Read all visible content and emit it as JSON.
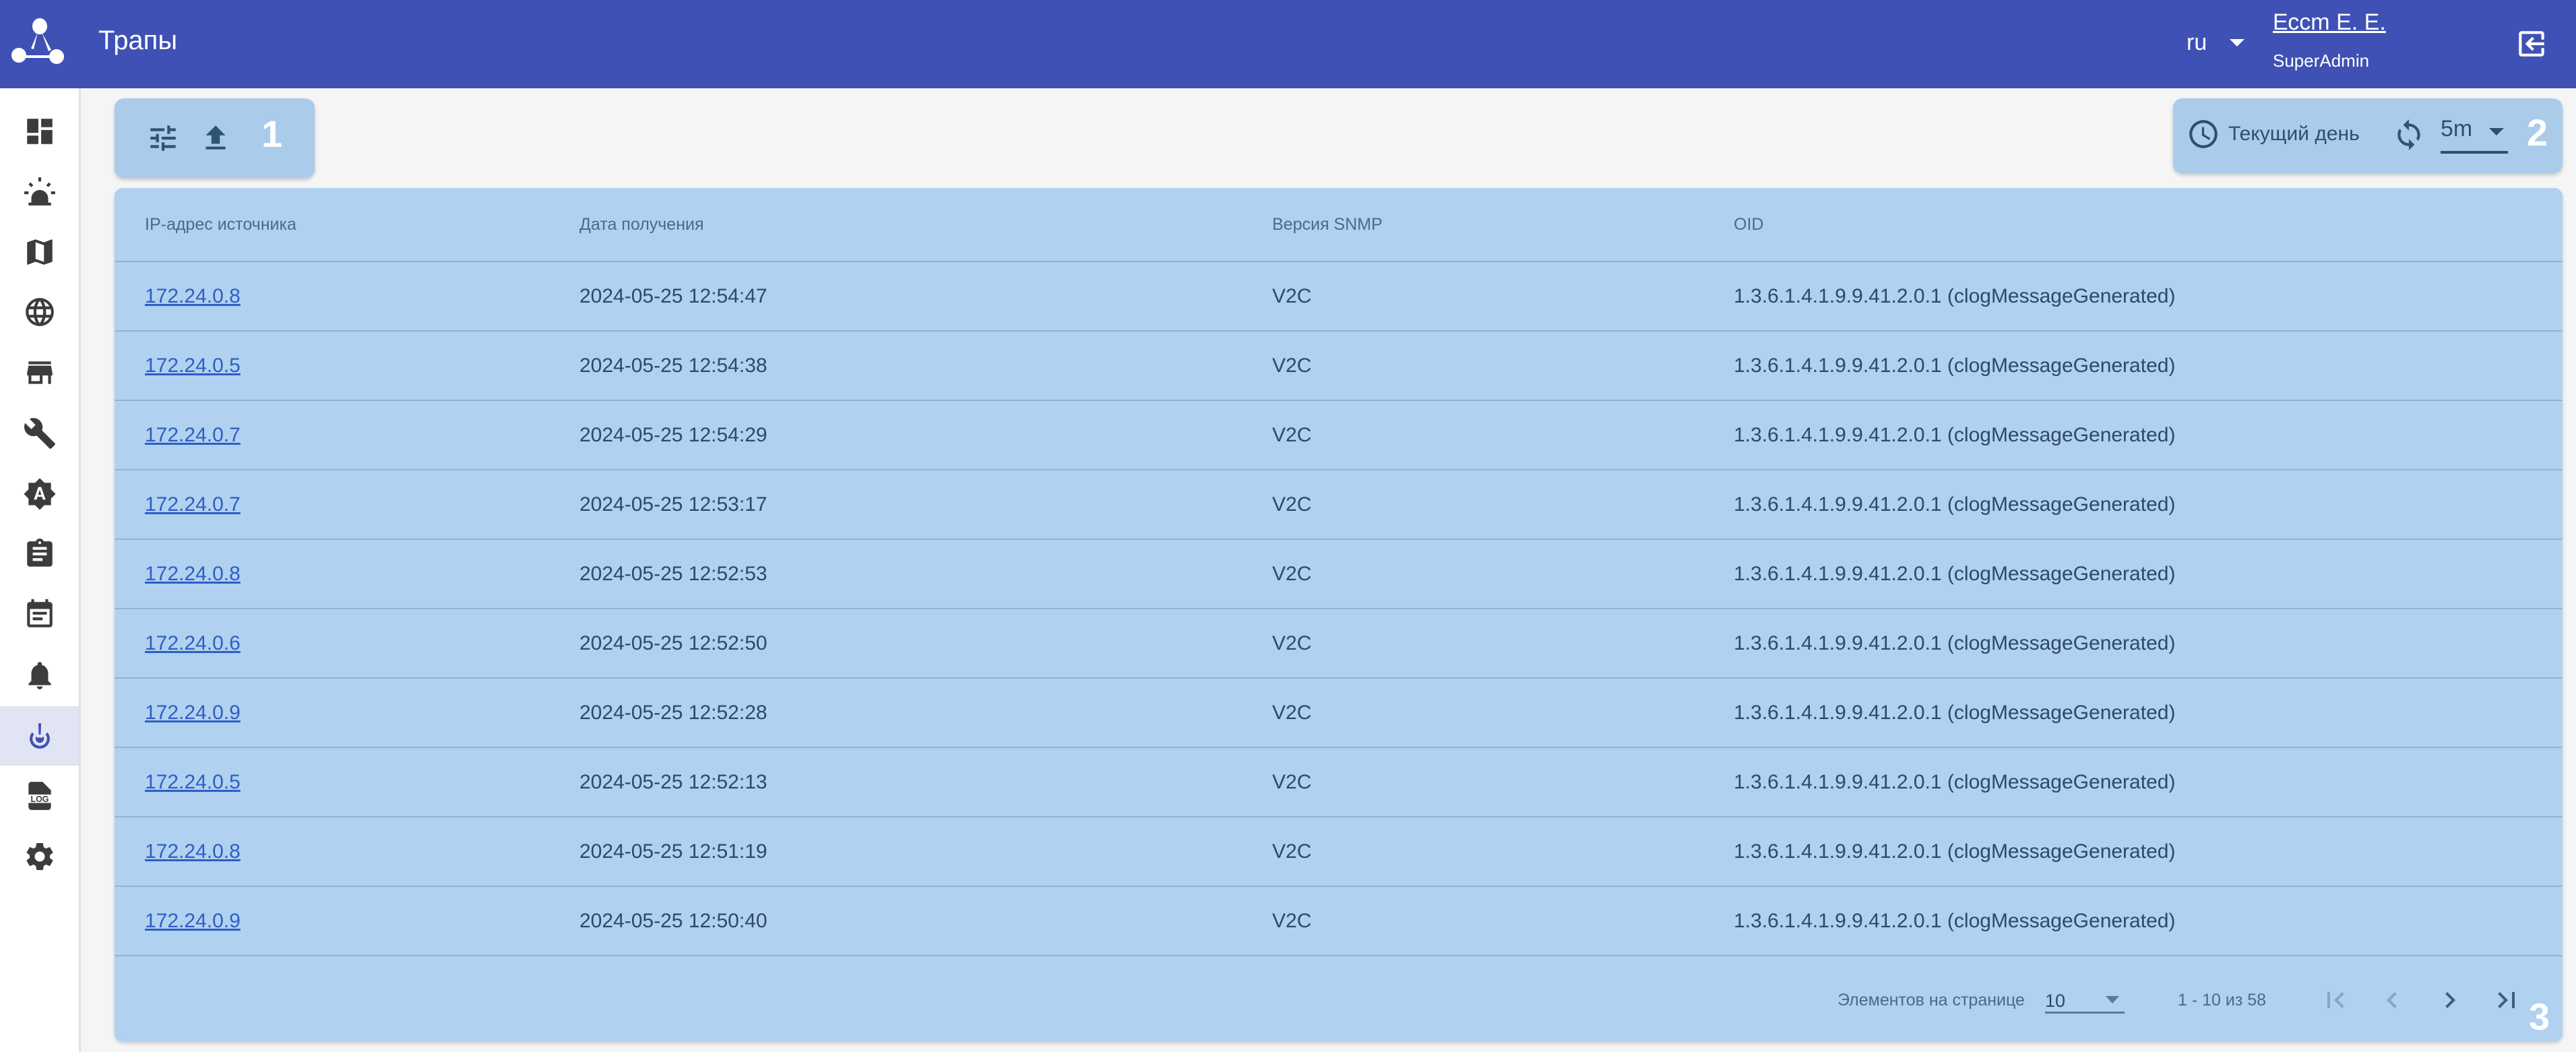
{
  "header": {
    "title": "Трапы",
    "language": "ru",
    "user_name": "Ессm Е. Е.",
    "user_role": "SuperAdmin",
    "accent": "#3f51b5"
  },
  "sidebar": {
    "items": [
      {
        "icon": "dashboard-icon"
      },
      {
        "icon": "alarm-light-icon"
      },
      {
        "icon": "map-icon"
      },
      {
        "icon": "globe-icon"
      },
      {
        "icon": "store-icon"
      },
      {
        "icon": "wrench-icon"
      },
      {
        "icon": "brightness-auto-icon"
      },
      {
        "icon": "clipboard-icon"
      },
      {
        "icon": "calendar-icon"
      },
      {
        "icon": "bell-icon"
      },
      {
        "icon": "trap-icon",
        "active": true
      },
      {
        "icon": "log-file-icon"
      },
      {
        "icon": "settings-icon"
      }
    ]
  },
  "toolbar_left": {
    "badge": "1",
    "buttons": [
      "filter-icon",
      "upload-icon"
    ]
  },
  "toolbar_right": {
    "period": "Текущий день",
    "refresh_interval": "5m",
    "badge": "2"
  },
  "table": {
    "columns": [
      "IP-адрес источника",
      "Дата получения",
      "Версия SNMP",
      "OID"
    ],
    "rows": [
      [
        "172.24.0.8",
        "2024-05-25 12:54:47",
        "V2C",
        "1.3.6.1.4.1.9.9.41.2.0.1 (clogMessageGenerated)"
      ],
      [
        "172.24.0.5",
        "2024-05-25 12:54:38",
        "V2C",
        "1.3.6.1.4.1.9.9.41.2.0.1 (clogMessageGenerated)"
      ],
      [
        "172.24.0.7",
        "2024-05-25 12:54:29",
        "V2C",
        "1.3.6.1.4.1.9.9.41.2.0.1 (clogMessageGenerated)"
      ],
      [
        "172.24.0.7",
        "2024-05-25 12:53:17",
        "V2C",
        "1.3.6.1.4.1.9.9.41.2.0.1 (clogMessageGenerated)"
      ],
      [
        "172.24.0.8",
        "2024-05-25 12:52:53",
        "V2C",
        "1.3.6.1.4.1.9.9.41.2.0.1 (clogMessageGenerated)"
      ],
      [
        "172.24.0.6",
        "2024-05-25 12:52:50",
        "V2C",
        "1.3.6.1.4.1.9.9.41.2.0.1 (clogMessageGenerated)"
      ],
      [
        "172.24.0.9",
        "2024-05-25 12:52:28",
        "V2C",
        "1.3.6.1.4.1.9.9.41.2.0.1 (clogMessageGenerated)"
      ],
      [
        "172.24.0.5",
        "2024-05-25 12:52:13",
        "V2C",
        "1.3.6.1.4.1.9.9.41.2.0.1 (clogMessageGenerated)"
      ],
      [
        "172.24.0.8",
        "2024-05-25 12:51:19",
        "V2C",
        "1.3.6.1.4.1.9.9.41.2.0.1 (clogMessageGenerated)"
      ],
      [
        "172.24.0.9",
        "2024-05-25 12:50:40",
        "V2C",
        "1.3.6.1.4.1.9.9.41.2.0.1 (clogMessageGenerated)"
      ]
    ]
  },
  "pager": {
    "items_per_page_label": "Элементов на странице",
    "items_per_page": "10",
    "range": "1 - 10 из 58",
    "badge": "3"
  }
}
